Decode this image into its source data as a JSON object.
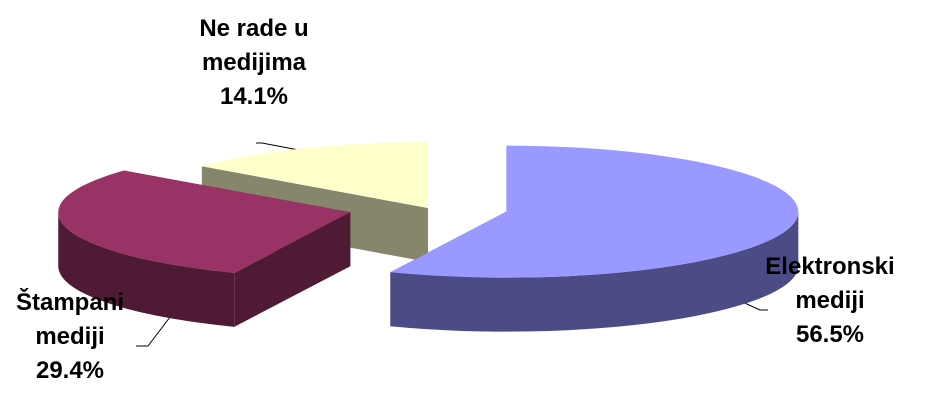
{
  "chart_data": {
    "type": "pie",
    "style": "3d-exploded",
    "title": "",
    "slices": [
      {
        "name": "Elektronski mediji",
        "label_line1": "Elektronski",
        "label_line2": "mediji",
        "value": 56.5,
        "value_label": "56.5%",
        "color": "#9999ff",
        "side_color": "#4b4b86"
      },
      {
        "name": "Štampani mediji",
        "label_line1": "Štampani",
        "label_line2": "mediji",
        "value": 29.4,
        "value_label": "29.4%",
        "color": "#993366",
        "side_color": "#4f1a34"
      },
      {
        "name": "Ne rade u medijima",
        "label_line1": "Ne rade u",
        "label_line2": "medijima",
        "value": 14.1,
        "value_label": "14.1%",
        "color": "#ffffcc",
        "side_color": "#86866c"
      }
    ]
  }
}
